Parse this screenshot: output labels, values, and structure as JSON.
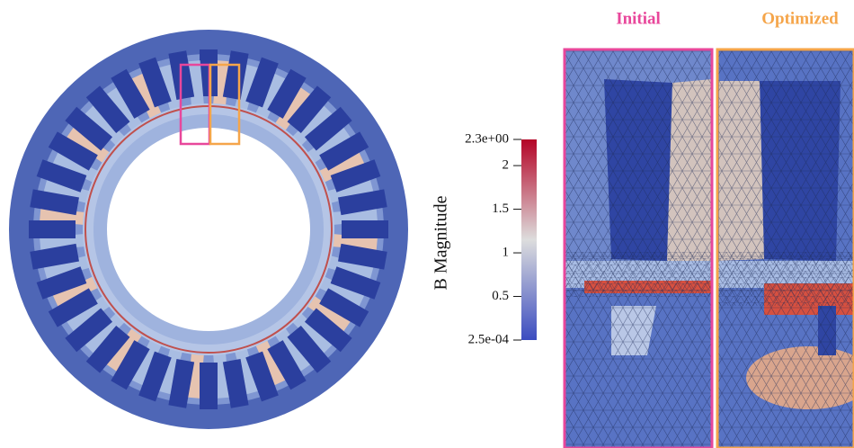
{
  "titles": {
    "initial": "Initial",
    "optimized": "Optimized"
  },
  "colorbar": {
    "label": "B Magnitude",
    "range": [
      0.00025,
      2.3
    ],
    "ticks": [
      {
        "value": 2.3,
        "label": "2.3e+00"
      },
      2,
      1.5,
      1,
      0.5,
      {
        "value": 0.00025,
        "label": "2.5e-04"
      }
    ]
  }
}
